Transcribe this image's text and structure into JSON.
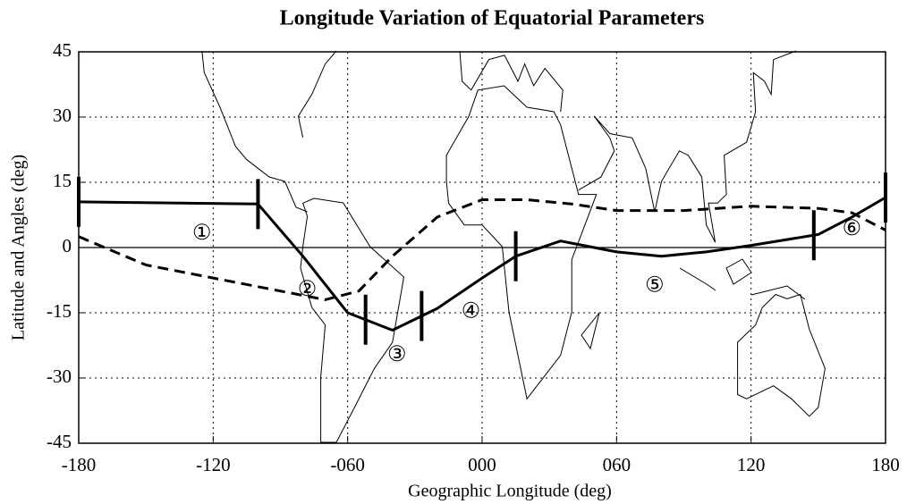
{
  "chart_data": {
    "type": "line",
    "title": "Longitude Variation of Equatorial Parameters",
    "x_label": "Geographic Longitude (deg)",
    "y_label": "Latitude and Angles (deg)",
    "xlim": [
      -180,
      180
    ],
    "ylim": [
      -45,
      45
    ],
    "xticks": [
      -180,
      -120,
      {
        "value": -60,
        "label": "-060"
      },
      {
        "value": 0,
        "label": "000"
      },
      {
        "value": 60,
        "label": "060"
      },
      120,
      180
    ],
    "yticks": [
      45,
      30,
      15,
      0,
      -15,
      -30,
      -45
    ],
    "grid": true,
    "reference_lines": [
      0
    ],
    "series": [
      {
        "color": "#000000",
        "style": "solid",
        "x": [
          -180,
          -100,
          -80,
          -60,
          -40,
          -20,
          0,
          15,
          35,
          60,
          80,
          100,
          120,
          150,
          165,
          180
        ],
        "values": [
          10.5,
          10,
          -2,
          -15,
          -19,
          -14,
          -7,
          -2,
          1.5,
          -1,
          -2,
          -1,
          0.5,
          3,
          7,
          11.5
        ]
      },
      {
        "color": "#000000",
        "style": "dashed",
        "x": [
          -180,
          -150,
          -120,
          -90,
          -70,
          -55,
          -40,
          -20,
          0,
          20,
          40,
          60,
          90,
          120,
          150,
          165,
          180
        ],
        "values": [
          2.5,
          -4,
          -7,
          -10,
          -12,
          -10,
          -2,
          7,
          11,
          11,
          10,
          8.5,
          8.5,
          9.5,
          9,
          8,
          4
        ]
      }
    ],
    "boundaries": [
      -180,
      -100,
      -52,
      -27,
      15,
      148,
      180
    ],
    "annotations": [
      "①",
      "②",
      "③",
      "④",
      "⑤",
      "⑥"
    ]
  }
}
